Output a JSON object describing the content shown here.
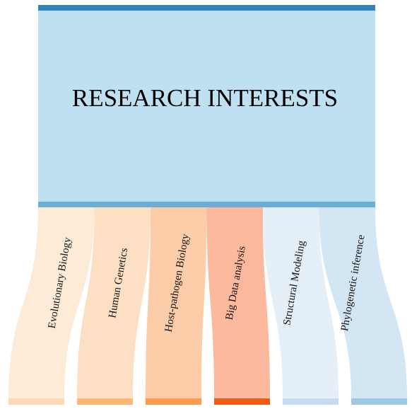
{
  "header": {
    "title": "RESEARCH INTERESTS",
    "fill_color": "#bfe0f1",
    "bar_color": "#3182bd",
    "bottom_bar_color": "#6baed6"
  },
  "interests": [
    {
      "label": "Evolutionary Biology",
      "flow_color": "#fdebd7",
      "bar_color": "#fdd9b5"
    },
    {
      "label": "Human Genetics",
      "flow_color": "#fddfc3",
      "bar_color": "#fdb676"
    },
    {
      "label": "Host-pathogen Biology",
      "flow_color": "#fdcda9",
      "bar_color": "#fd9a4f"
    },
    {
      "label": "Big Data analysis",
      "flow_color": "#fcb99d",
      "bar_color": "#f15a13"
    },
    {
      "label": "Structural Modeling",
      "flow_color": "#e4eff8",
      "bar_color": "#c6dbef"
    },
    {
      "label": "Phylogenetic inference",
      "flow_color": "#d3e6f3",
      "bar_color": "#9ecae1"
    }
  ]
}
